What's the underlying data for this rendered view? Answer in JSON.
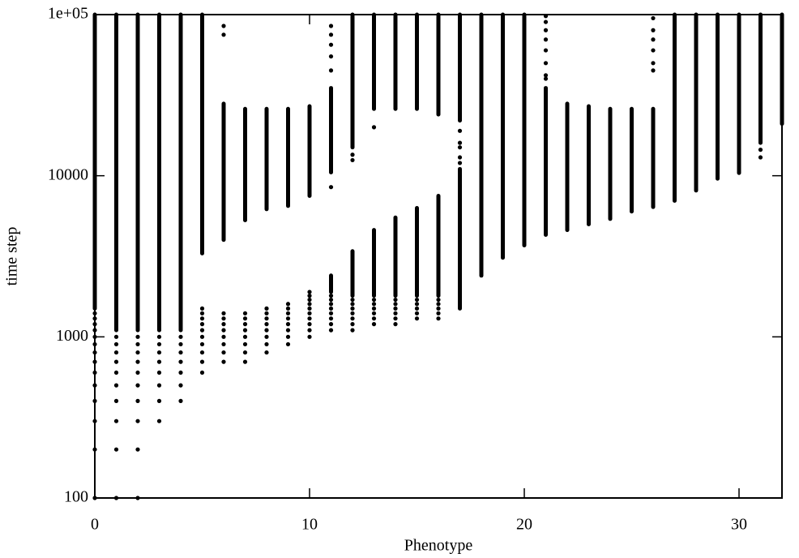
{
  "chart_data": {
    "type": "scatter",
    "xlabel": "Phenotype",
    "ylabel": "time step",
    "xlim": [
      0,
      32
    ],
    "xticks": [
      0,
      10,
      20,
      30
    ],
    "ylim": [
      100,
      100000
    ],
    "yticks": [
      100,
      1000,
      10000,
      {
        "value": 100000,
        "label": "1e+05"
      }
    ],
    "log_y": true,
    "color": "#000000",
    "ranges": [
      {
        "x": 0,
        "low": 1500,
        "high": 100000
      },
      {
        "x": 1,
        "low": 1100,
        "high": 100000
      },
      {
        "x": 2,
        "low": 1100,
        "high": 100000
      },
      {
        "x": 3,
        "low": 1100,
        "high": 100000
      },
      {
        "x": 4,
        "low": 1100,
        "high": 100000
      },
      {
        "x": 5,
        "low": 3300,
        "high": 100000
      },
      {
        "x": 6,
        "low": 4000,
        "high": 28000
      },
      {
        "x": 7,
        "low": 5300,
        "high": 26000
      },
      {
        "x": 8,
        "low": 6200,
        "high": 26000
      },
      {
        "x": 9,
        "low": 6500,
        "high": 26000
      },
      {
        "x": 10,
        "low": 7500,
        "high": 27000
      },
      {
        "x": 11,
        "low": 1900,
        "high": 2400
      },
      {
        "x": 11,
        "low": 10500,
        "high": 35000
      },
      {
        "x": 12,
        "low": 1800,
        "high": 3400
      },
      {
        "x": 12,
        "low": 15000,
        "high": 100000
      },
      {
        "x": 13,
        "low": 1800,
        "high": 4600
      },
      {
        "x": 13,
        "low": 26000,
        "high": 100000
      },
      {
        "x": 14,
        "low": 1800,
        "high": 5500
      },
      {
        "x": 14,
        "low": 26000,
        "high": 100000
      },
      {
        "x": 15,
        "low": 1800,
        "high": 6300
      },
      {
        "x": 15,
        "low": 26000,
        "high": 100000
      },
      {
        "x": 16,
        "low": 1800,
        "high": 7500
      },
      {
        "x": 16,
        "low": 24000,
        "high": 100000
      },
      {
        "x": 17,
        "low": 1500,
        "high": 11000
      },
      {
        "x": 17,
        "low": 22000,
        "high": 100000
      },
      {
        "x": 18,
        "low": 2400,
        "high": 100000
      },
      {
        "x": 19,
        "low": 3100,
        "high": 100000
      },
      {
        "x": 20,
        "low": 3700,
        "high": 100000
      },
      {
        "x": 21,
        "low": 4300,
        "high": 35000
      },
      {
        "x": 22,
        "low": 4600,
        "high": 28000
      },
      {
        "x": 23,
        "low": 5000,
        "high": 27000
      },
      {
        "x": 24,
        "low": 5400,
        "high": 26000
      },
      {
        "x": 25,
        "low": 6000,
        "high": 26000
      },
      {
        "x": 26,
        "low": 6400,
        "high": 26000
      },
      {
        "x": 27,
        "low": 7000,
        "high": 100000
      },
      {
        "x": 28,
        "low": 8100,
        "high": 100000
      },
      {
        "x": 29,
        "low": 9600,
        "high": 100000
      },
      {
        "x": 30,
        "low": 10400,
        "high": 100000
      },
      {
        "x": 31,
        "low": 16000,
        "high": 100000
      },
      {
        "x": 32,
        "low": 21000,
        "high": 100000
      }
    ],
    "points": [
      {
        "x": 0,
        "y": [
          100,
          200,
          300,
          400,
          500,
          600,
          700,
          800,
          900,
          1000,
          1100,
          1200,
          1300,
          1400
        ]
      },
      {
        "x": 1,
        "y": [
          100,
          200,
          300,
          400,
          500,
          600,
          700,
          800,
          900,
          1000
        ]
      },
      {
        "x": 2,
        "y": [
          100,
          200,
          300,
          400,
          500,
          600,
          700,
          800,
          900,
          1000
        ]
      },
      {
        "x": 3,
        "y": [
          300,
          400,
          500,
          600,
          700,
          800,
          900,
          1000
        ]
      },
      {
        "x": 4,
        "y": [
          400,
          500,
          600,
          700,
          800,
          900,
          1000
        ]
      },
      {
        "x": 5,
        "y": [
          600,
          700,
          800,
          900,
          1000,
          1100,
          1200,
          1300,
          1400,
          1500
        ]
      },
      {
        "x": 6,
        "y": [
          700,
          800,
          900,
          1000,
          1100,
          1200,
          1300,
          1400,
          75000,
          85000
        ]
      },
      {
        "x": 7,
        "y": [
          700,
          800,
          900,
          1000,
          1100,
          1200,
          1300,
          1400
        ]
      },
      {
        "x": 8,
        "y": [
          800,
          900,
          1000,
          1100,
          1200,
          1300,
          1400,
          1500
        ]
      },
      {
        "x": 9,
        "y": [
          900,
          1000,
          1100,
          1200,
          1300,
          1400,
          1500,
          1600
        ]
      },
      {
        "x": 10,
        "y": [
          1000,
          1100,
          1200,
          1300,
          1400,
          1500,
          1600,
          1700,
          1800,
          1900
        ]
      },
      {
        "x": 11,
        "y": [
          1100,
          1200,
          1300,
          1400,
          1500,
          1600,
          1700,
          1800,
          8500,
          45000,
          55000,
          65000,
          75000,
          85000
        ]
      },
      {
        "x": 12,
        "y": [
          1100,
          1200,
          1300,
          1400,
          1500,
          1600,
          1700,
          12500,
          13500
        ]
      },
      {
        "x": 13,
        "y": [
          1200,
          1300,
          1400,
          1500,
          1600,
          1700,
          20000
        ]
      },
      {
        "x": 14,
        "y": [
          1200,
          1300,
          1400,
          1500,
          1600,
          1700
        ]
      },
      {
        "x": 15,
        "y": [
          1300,
          1400,
          1500,
          1600,
          1700
        ]
      },
      {
        "x": 16,
        "y": [
          1300,
          1400,
          1500,
          1600,
          1700
        ]
      },
      {
        "x": 17,
        "y": [
          12000,
          13000,
          15000,
          16000,
          19000
        ]
      },
      {
        "x": 21,
        "y": [
          40000,
          42000,
          50000,
          60000,
          70000,
          80000,
          90000,
          98000
        ]
      },
      {
        "x": 26,
        "y": [
          45000,
          50000,
          60000,
          70000,
          80000,
          95000
        ]
      },
      {
        "x": 31,
        "y": [
          13000,
          14500
        ]
      }
    ]
  }
}
